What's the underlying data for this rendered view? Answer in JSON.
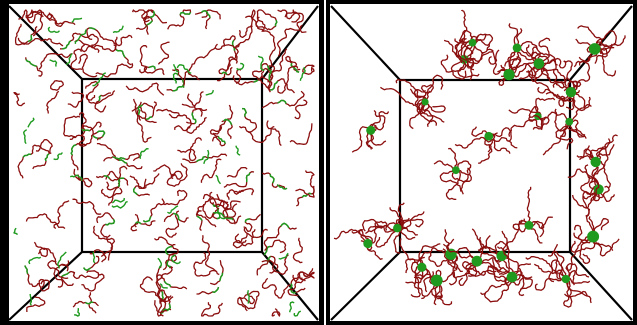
{
  "figure": {
    "description_visible_text": "",
    "panels": [
      {
        "id": "left",
        "chain_color": "#8b0f0f",
        "cluster_color": "#1f9a1f",
        "frame_color": "#000000",
        "chain_count": 170,
        "green_segment_fraction": 0.18,
        "seed": 11
      },
      {
        "id": "right",
        "chain_color": "#8b0f0f",
        "cluster_color": "#1f9a1f",
        "frame_color": "#000000",
        "chain_count": 26,
        "green_segment_fraction": 0.0,
        "seed": 29
      }
    ]
  }
}
